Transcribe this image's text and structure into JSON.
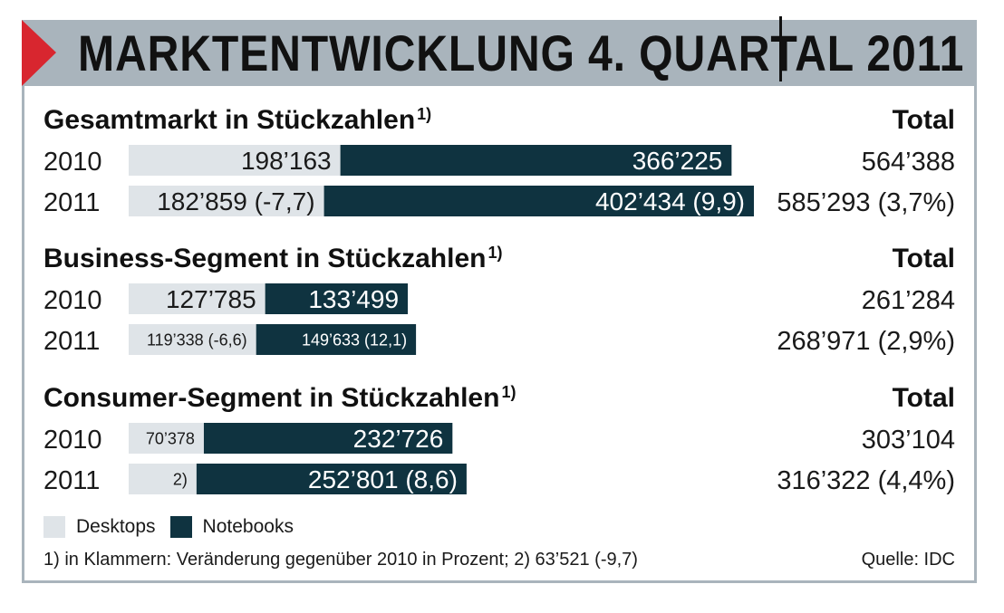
{
  "title": "MARKTENTWICKLUNG 4. QUARTAL 2011",
  "colors": {
    "desktop": "#dfe4e8",
    "notebook": "#0f3340",
    "header_bg": "#a9b4bc",
    "accent_red": "#d8262f"
  },
  "chart_data": {
    "type": "bar",
    "orientation": "horizontal",
    "stacked": true,
    "total_header": "Total",
    "sections": [
      {
        "title": "Gesamtmarkt in Stückzahlen",
        "sup": "1)",
        "rows": [
          {
            "year": "2010",
            "desktop": 198163,
            "notebook": 366225,
            "desktop_label": "198’163",
            "notebook_label": "366’225",
            "total_label": "564’388"
          },
          {
            "year": "2011",
            "desktop": 182859,
            "notebook": 402434,
            "desktop_label": "182’859 (-7,7)",
            "notebook_label": "402’434 (9,9)",
            "total_label": "585’293 (3,7%)"
          }
        ]
      },
      {
        "title": "Business-Segment in Stückzahlen",
        "sup": "1)",
        "rows": [
          {
            "year": "2010",
            "desktop": 127785,
            "notebook": 133499,
            "desktop_label": "127’785",
            "notebook_label": "133’499",
            "total_label": "261’284"
          },
          {
            "year": "2011",
            "desktop": 119338,
            "notebook": 149633,
            "desktop_label": "119’338 (-6,6)",
            "notebook_label": "149’633 (12,1)",
            "total_label": "268’971 (2,9%)"
          }
        ]
      },
      {
        "title": "Consumer-Segment in Stückzahlen",
        "sup": "1)",
        "rows": [
          {
            "year": "2010",
            "desktop": 70378,
            "notebook": 232726,
            "desktop_label": "70’378",
            "notebook_label": "232’726",
            "total_label": "303’104"
          },
          {
            "year": "2011",
            "desktop": 63521,
            "notebook": 252801,
            "desktop_label": "2)",
            "notebook_label": "252’801 (8,6)",
            "total_label": "316’322 (4,4%)"
          }
        ]
      }
    ],
    "legend": [
      {
        "name": "Desktops",
        "color": "#dfe4e8"
      },
      {
        "name": "Notebooks",
        "color": "#0f3340"
      }
    ],
    "legend_placement": "bottom-left"
  },
  "footnote": "1) in Klammern: Veränderung gegenüber 2010 in Prozent; 2) 63’521 (-9,7)",
  "source": "Quelle: IDC"
}
